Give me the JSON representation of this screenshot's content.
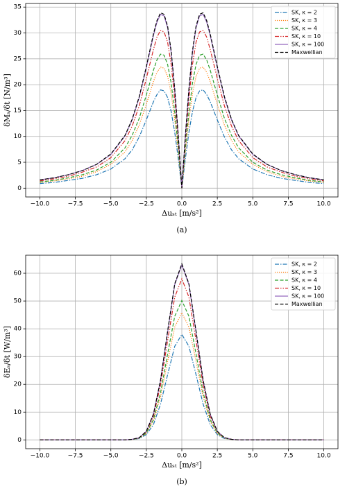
{
  "chart_data": [
    {
      "type": "line",
      "ylabel": "δMₛ/δt  [N/m³]",
      "xlabel": "Δuₛₜ  [m/s²]",
      "caption": "(a)",
      "x": [
        -10,
        -9,
        -8,
        -7,
        -6,
        -5,
        -4,
        -3.5,
        -3,
        -2.5,
        -2,
        -1.75,
        -1.5,
        -1.25,
        -1,
        -0.75,
        -0.5,
        -0.25,
        0,
        0.25,
        0.5,
        0.75,
        1,
        1.25,
        1.5,
        1.75,
        2,
        2.5,
        3,
        3.5,
        4,
        5,
        6,
        7,
        8,
        9,
        10
      ],
      "series": [
        {
          "name": "SK, κ = 2",
          "color": "#1f77b4",
          "linestyle": "-.",
          "values": [
            0.9,
            1.1,
            1.5,
            1.9,
            2.6,
            3.7,
            5.7,
            7.4,
            9.9,
            13.2,
            16.7,
            18.1,
            19.0,
            18.8,
            17.5,
            14.8,
            10.8,
            5.7,
            0,
            5.7,
            10.8,
            14.8,
            17.5,
            18.8,
            19.0,
            18.1,
            16.7,
            13.2,
            9.9,
            7.4,
            5.7,
            3.7,
            2.6,
            1.9,
            1.5,
            1.1,
            0.9
          ]
        },
        {
          "name": "SK, κ = 3",
          "color": "#ff7f0e",
          "linestyle": ":",
          "values": [
            1.1,
            1.4,
            1.8,
            2.3,
            3.2,
            4.6,
            7.0,
            9.2,
            12.2,
            16.2,
            20.6,
            22.4,
            23.4,
            23.2,
            21.6,
            18.3,
            13.2,
            7.0,
            0,
            7.0,
            13.2,
            18.3,
            21.6,
            23.2,
            23.4,
            22.4,
            20.6,
            16.2,
            12.2,
            9.2,
            7.0,
            4.6,
            3.2,
            2.3,
            1.8,
            1.4,
            1.1
          ]
        },
        {
          "name": "SK, κ = 4",
          "color": "#2ca02c",
          "linestyle": "--",
          "values": [
            1.2,
            1.5,
            2.0,
            2.6,
            3.5,
            5.0,
            7.8,
            10.2,
            13.5,
            18.0,
            22.8,
            24.8,
            25.9,
            25.7,
            23.9,
            20.3,
            14.7,
            7.8,
            0,
            7.8,
            14.7,
            20.3,
            23.9,
            25.7,
            25.9,
            24.8,
            22.8,
            18.0,
            13.5,
            10.2,
            7.8,
            5.0,
            3.5,
            2.6,
            2.0,
            1.5,
            1.2
          ]
        },
        {
          "name": "SK, κ = 10",
          "color": "#d62728",
          "linestyle": "-..",
          "values": [
            1.4,
            1.8,
            2.3,
            3.1,
            4.1,
            5.9,
            9.2,
            12.0,
            15.9,
            21.2,
            26.8,
            29.2,
            30.5,
            30.2,
            28.2,
            23.9,
            17.3,
            9.2,
            0,
            9.2,
            17.3,
            23.9,
            28.2,
            30.2,
            30.5,
            29.2,
            26.8,
            21.2,
            15.9,
            12.0,
            9.2,
            5.9,
            4.1,
            3.1,
            2.3,
            1.8,
            1.4
          ]
        },
        {
          "name": "SK, κ = 100",
          "color": "#9467bd",
          "linestyle": "-",
          "values": [
            1.6,
            2.0,
            2.6,
            3.4,
            4.6,
            6.5,
            10.1,
            13.2,
            17.5,
            23.3,
            29.5,
            32.1,
            33.6,
            33.3,
            31.0,
            26.2,
            19.0,
            10.1,
            0,
            10.1,
            19.0,
            26.2,
            31.0,
            33.3,
            33.6,
            32.1,
            29.5,
            23.3,
            17.5,
            13.2,
            10.1,
            6.5,
            4.6,
            3.4,
            2.6,
            2.0,
            1.6
          ]
        },
        {
          "name": "Maxwellian",
          "color": "#000000",
          "linestyle": "--",
          "values": [
            1.6,
            2.0,
            2.6,
            3.4,
            4.6,
            6.6,
            10.2,
            13.3,
            17.7,
            23.5,
            29.8,
            32.4,
            33.9,
            33.6,
            31.3,
            26.5,
            19.2,
            10.2,
            0,
            10.2,
            19.2,
            26.5,
            31.3,
            33.6,
            33.9,
            32.4,
            29.8,
            23.5,
            17.7,
            13.3,
            10.2,
            6.6,
            4.6,
            3.4,
            2.6,
            2.0,
            1.6
          ]
        }
      ],
      "xlim": [
        -11,
        11
      ],
      "ylim": [
        -1.7,
        35.7
      ],
      "xticks": [
        {
          "value": -10,
          "label": "−10.0"
        },
        {
          "value": -7.5,
          "label": "−7.5"
        },
        {
          "value": -5,
          "label": "−5.0"
        },
        {
          "value": -2.5,
          "label": "−2.5"
        },
        {
          "value": 0,
          "label": "0.0"
        },
        {
          "value": 2.5,
          "label": "2.5"
        },
        {
          "value": 5,
          "label": "5.0"
        },
        {
          "value": 7.5,
          "label": "7.5"
        },
        {
          "value": 10,
          "label": "10.0"
        }
      ],
      "yticks": [
        0,
        5,
        10,
        15,
        20,
        25,
        30,
        35
      ],
      "grid": true,
      "legend": "upper right"
    },
    {
      "type": "line",
      "ylabel": "δEₛ/δt  [W/m³]",
      "xlabel": "Δuₛₜ  [m/s²]",
      "caption": "(b)",
      "x": [
        -10,
        -8,
        -6,
        -5,
        -4,
        -3.5,
        -3,
        -2.5,
        -2,
        -1.5,
        -1,
        -0.5,
        0,
        0.5,
        1,
        1.5,
        2,
        2.5,
        3,
        3.5,
        4,
        5,
        6,
        8,
        10
      ],
      "series": [
        {
          "name": "SK, κ = 2",
          "color": "#1f77b4",
          "linestyle": "-.",
          "values": [
            0,
            0,
            0,
            0,
            0,
            0.1,
            0.5,
            1.9,
            5.5,
            12.9,
            23.5,
            33.7,
            38.0,
            33.7,
            23.5,
            12.9,
            5.5,
            1.9,
            0.5,
            0.1,
            0,
            0,
            0,
            0,
            0
          ]
        },
        {
          "name": "SK, κ = 3",
          "color": "#ff7f0e",
          "linestyle": ":",
          "values": [
            0,
            0,
            0,
            0,
            0,
            0.1,
            0.6,
            2.3,
            6.7,
            15.5,
            28.3,
            40.6,
            45.8,
            40.6,
            28.3,
            15.5,
            6.7,
            2.3,
            0.6,
            0.1,
            0,
            0,
            0,
            0,
            0
          ]
        },
        {
          "name": "SK, κ = 4",
          "color": "#2ca02c",
          "linestyle": "--",
          "values": [
            0,
            0,
            0,
            0,
            0,
            0.1,
            0.7,
            2.5,
            7.3,
            17.0,
            31.0,
            44.5,
            50.2,
            44.5,
            31.0,
            17.0,
            7.3,
            2.5,
            0.7,
            0.1,
            0,
            0,
            0,
            0,
            0
          ]
        },
        {
          "name": "SK, κ = 10",
          "color": "#d62728",
          "linestyle": "-..",
          "values": [
            0,
            0,
            0,
            0,
            0,
            0.2,
            0.8,
            2.9,
            8.5,
            19.7,
            35.8,
            51.4,
            58.0,
            51.4,
            35.8,
            19.7,
            8.5,
            2.9,
            0.8,
            0.2,
            0,
            0,
            0,
            0,
            0
          ]
        },
        {
          "name": "SK, κ = 100",
          "color": "#9467bd",
          "linestyle": "-",
          "values": [
            0,
            0,
            0,
            0,
            0,
            0.2,
            0.8,
            3.1,
            9.2,
            21.4,
            38.9,
            55.9,
            63.0,
            55.9,
            38.9,
            21.4,
            9.2,
            3.1,
            0.8,
            0.2,
            0,
            0,
            0,
            0,
            0
          ]
        },
        {
          "name": "Maxwellian",
          "color": "#000000",
          "linestyle": "--",
          "values": [
            0,
            0,
            0,
            0,
            0,
            0.2,
            0.8,
            3.1,
            9.3,
            21.5,
            39.2,
            56.2,
            63.4,
            56.2,
            39.2,
            21.5,
            9.3,
            3.1,
            0.8,
            0.2,
            0,
            0,
            0,
            0,
            0
          ]
        }
      ],
      "xlim": [
        -11,
        11
      ],
      "ylim": [
        -3.17,
        66.5
      ],
      "xticks": [
        {
          "value": -10,
          "label": "−10.0"
        },
        {
          "value": -7.5,
          "label": "−7.5"
        },
        {
          "value": -5,
          "label": "−5.0"
        },
        {
          "value": -2.5,
          "label": "−2.5"
        },
        {
          "value": 0,
          "label": "0.0"
        },
        {
          "value": 2.5,
          "label": "2.5"
        },
        {
          "value": 5,
          "label": "5.0"
        },
        {
          "value": 7.5,
          "label": "7.5"
        },
        {
          "value": 10,
          "label": "10.0"
        }
      ],
      "yticks": [
        0,
        10,
        20,
        30,
        40,
        50,
        60
      ],
      "grid": true,
      "legend": "upper right"
    }
  ]
}
